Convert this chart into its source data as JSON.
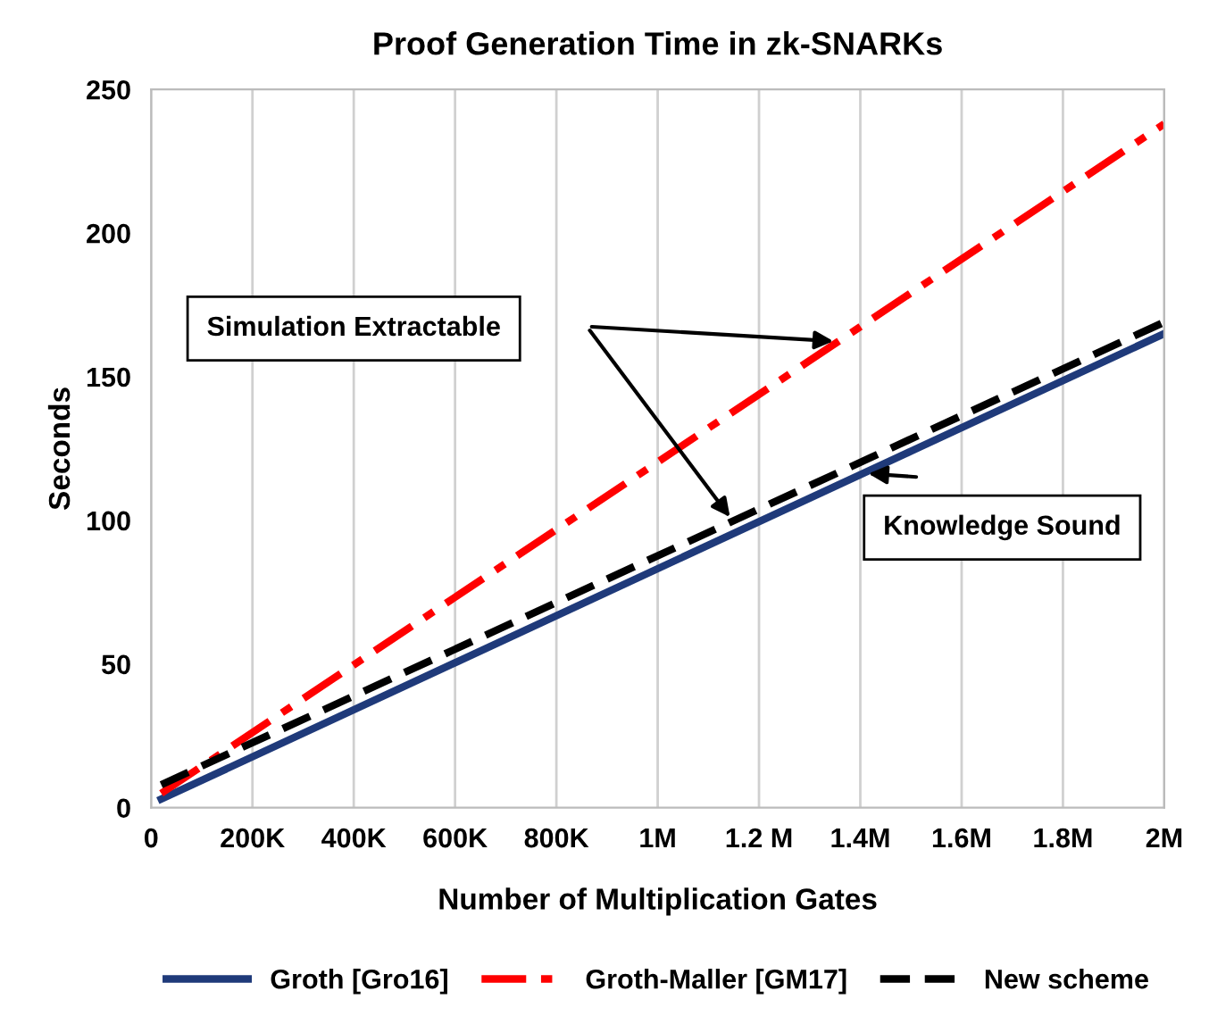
{
  "chart_data": {
    "type": "line",
    "title": "Proof Generation Time in zk-SNARKs",
    "xlabel": "Number of Multiplication Gates",
    "ylabel": "Seconds",
    "x": [
      20000,
      2000000
    ],
    "series": [
      {
        "name": "Groth [Gro16]",
        "color": "#1f3a7a",
        "values": [
          3,
          165
        ],
        "line_style": "solid"
      },
      {
        "name": "Groth-Maller [GM17]",
        "color": "#ff0000",
        "values": [
          5,
          238
        ],
        "line_style": "dashdot"
      },
      {
        "name": "New scheme",
        "color": "#000000",
        "values": [
          8,
          169
        ],
        "line_style": "dashed"
      }
    ],
    "xlim": [
      0,
      2000000
    ],
    "xticks": [
      0,
      {
        "value": 200000,
        "label": "200K"
      },
      {
        "value": 400000,
        "label": "400K"
      },
      {
        "value": 600000,
        "label": "600K"
      },
      {
        "value": 800000,
        "label": "800K"
      },
      {
        "value": 1000000,
        "label": "1M"
      },
      {
        "value": 1200000,
        "label": "1.2 M"
      },
      {
        "value": 1400000,
        "label": "1.4M"
      },
      {
        "value": 1600000,
        "label": "1.6M"
      },
      {
        "value": 1800000,
        "label": "1.8M"
      },
      {
        "value": 2000000,
        "label": "2M"
      }
    ],
    "ylim": [
      0,
      250
    ],
    "yticks": [
      0,
      50,
      100,
      150,
      200,
      250
    ],
    "grid": "x",
    "legend": "bottom",
    "marker": "none",
    "annotations": [
      "Simulation Extractable",
      "Knowledge Sound"
    ]
  }
}
